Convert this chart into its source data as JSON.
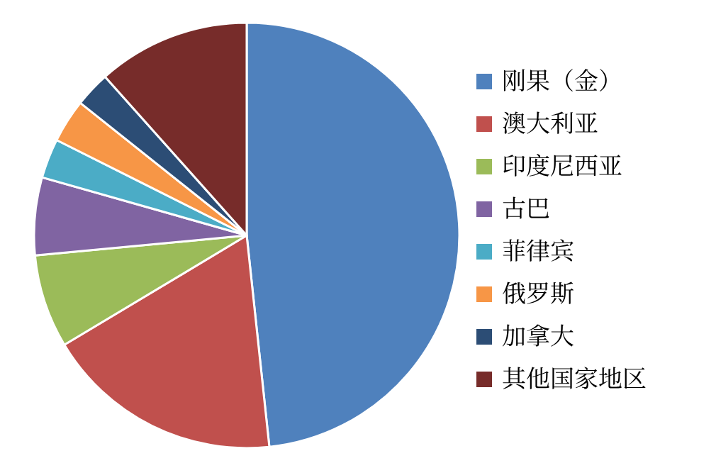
{
  "chart_data": {
    "type": "pie",
    "legend": "right",
    "categories": [
      "刚果（金）",
      "澳大利亚",
      "印度尼西亚",
      "古巴",
      "菲律宾",
      "俄罗斯",
      "加拿大",
      "其他国家地区"
    ],
    "values": [
      48.3,
      18.1,
      7.1,
      5.9,
      3.0,
      3.3,
      2.7,
      11.6
    ],
    "colors": [
      "#4f81bd",
      "#c0504d",
      "#9bbb59",
      "#8064a2",
      "#4bacc6",
      "#f79646",
      "#2c4d75",
      "#772c2a"
    ]
  }
}
